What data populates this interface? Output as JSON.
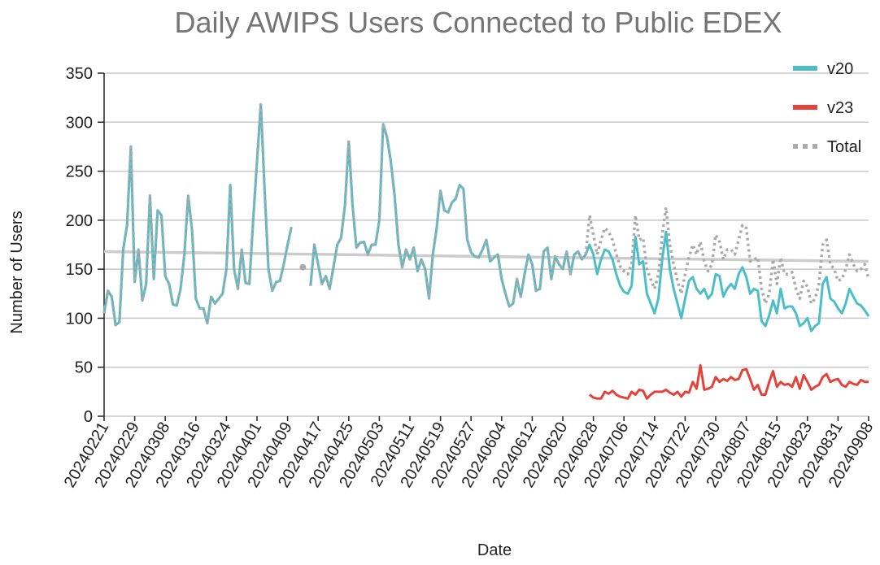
{
  "chart_data": {
    "type": "line",
    "title": "Daily AWIPS Users Connected to Public EDEX",
    "x_label": "Date",
    "y_label": "Number of Users",
    "categories": [
      "20240221",
      null,
      null,
      null,
      null,
      null,
      null,
      null,
      "20240229",
      null,
      null,
      null,
      null,
      null,
      null,
      null,
      "20240308",
      null,
      null,
      null,
      null,
      null,
      null,
      null,
      "20240316",
      null,
      null,
      null,
      null,
      null,
      null,
      null,
      "20240324",
      null,
      null,
      null,
      null,
      null,
      null,
      null,
      "20240401",
      null,
      null,
      null,
      null,
      null,
      null,
      null,
      "20240409",
      null,
      null,
      null,
      null,
      null,
      null,
      null,
      "20240417",
      null,
      null,
      null,
      null,
      null,
      null,
      null,
      "20240425",
      null,
      null,
      null,
      null,
      null,
      null,
      null,
      "20240503",
      null,
      null,
      null,
      null,
      null,
      null,
      null,
      "20240511",
      null,
      null,
      null,
      null,
      null,
      null,
      null,
      "20240519",
      null,
      null,
      null,
      null,
      null,
      null,
      null,
      "20240527",
      null,
      null,
      null,
      null,
      null,
      null,
      null,
      "20240604",
      null,
      null,
      null,
      null,
      null,
      null,
      null,
      "20240612",
      null,
      null,
      null,
      null,
      null,
      null,
      null,
      "20240620",
      null,
      null,
      null,
      null,
      null,
      null,
      null,
      "20240628",
      null,
      null,
      null,
      null,
      null,
      null,
      null,
      "20240706",
      null,
      null,
      null,
      null,
      null,
      null,
      null,
      "20240714",
      null,
      null,
      null,
      null,
      null,
      null,
      null,
      "20240722",
      null,
      null,
      null,
      null,
      null,
      null,
      null,
      "20240730",
      null,
      null,
      null,
      null,
      null,
      null,
      null,
      "20240807",
      null,
      null,
      null,
      null,
      null,
      null,
      null,
      "20240815",
      null,
      null,
      null,
      null,
      null,
      null,
      null,
      "20240823",
      null,
      null,
      null,
      null,
      null,
      null,
      null,
      "20240831",
      null,
      null,
      null,
      null,
      null,
      null,
      null,
      "20240908"
    ],
    "series": [
      {
        "name": "v20",
        "color": "#4bbec8",
        "style": "solid",
        "values": [
          105,
          128,
          122,
          93,
          96,
          170,
          195,
          275,
          137,
          170,
          118,
          135,
          225,
          140,
          210,
          205,
          143,
          135,
          114,
          113,
          130,
          165,
          225,
          190,
          120,
          110,
          110,
          95,
          122,
          115,
          120,
          125,
          150,
          236,
          150,
          130,
          170,
          136,
          135,
          200,
          260,
          318,
          230,
          150,
          128,
          137,
          138,
          155,
          175,
          193,
          null,
          null,
          null,
          null,
          133,
          175,
          155,
          135,
          143,
          130,
          152,
          175,
          182,
          215,
          280,
          215,
          172,
          177,
          178,
          165,
          175,
          175,
          200,
          298,
          285,
          260,
          225,
          175,
          152,
          170,
          160,
          172,
          148,
          160,
          150,
          120,
          165,
          192,
          230,
          210,
          208,
          218,
          222,
          236,
          232,
          180,
          167,
          163,
          162,
          170,
          180,
          158,
          162,
          165,
          140,
          125,
          112,
          115,
          140,
          122,
          145,
          165,
          155,
          128,
          130,
          168,
          172,
          140,
          163,
          155,
          150,
          168,
          145,
          165,
          168,
          160,
          165,
          175,
          165,
          145,
          160,
          170,
          168,
          160,
          145,
          133,
          127,
          125,
          133,
          183,
          155,
          158,
          125,
          115,
          105,
          120,
          160,
          188,
          150,
          130,
          115,
          100,
          120,
          138,
          142,
          130,
          125,
          130,
          120,
          125,
          145,
          143,
          122,
          130,
          135,
          130,
          145,
          152,
          142,
          125,
          130,
          128,
          97,
          92,
          103,
          118,
          105,
          130,
          110,
          112,
          112,
          105,
          92,
          95,
          100,
          87,
          92,
          95,
          135,
          142,
          120,
          117,
          110,
          105,
          115,
          130,
          122,
          115,
          113,
          108,
          102
        ]
      },
      {
        "name": "v23",
        "color": "#e5433a",
        "style": "solid",
        "values": [
          null,
          null,
          null,
          null,
          null,
          null,
          null,
          null,
          null,
          null,
          null,
          null,
          null,
          null,
          null,
          null,
          null,
          null,
          null,
          null,
          null,
          null,
          null,
          null,
          null,
          null,
          null,
          null,
          null,
          null,
          null,
          null,
          null,
          null,
          null,
          null,
          null,
          null,
          null,
          null,
          null,
          null,
          null,
          null,
          null,
          null,
          null,
          null,
          null,
          null,
          null,
          null,
          null,
          null,
          null,
          null,
          null,
          null,
          null,
          null,
          null,
          null,
          null,
          null,
          null,
          null,
          null,
          null,
          null,
          null,
          null,
          null,
          null,
          null,
          null,
          null,
          null,
          null,
          null,
          null,
          null,
          null,
          null,
          null,
          null,
          null,
          null,
          null,
          null,
          null,
          null,
          null,
          null,
          null,
          null,
          null,
          null,
          null,
          null,
          null,
          null,
          null,
          null,
          null,
          null,
          null,
          null,
          null,
          null,
          null,
          null,
          null,
          null,
          null,
          null,
          null,
          null,
          null,
          null,
          null,
          null,
          null,
          null,
          null,
          null,
          null,
          null,
          22,
          19,
          18,
          18,
          25,
          23,
          26,
          22,
          20,
          19,
          18,
          25,
          22,
          27,
          26,
          18,
          22,
          25,
          25,
          25,
          27,
          24,
          22,
          25,
          20,
          25,
          24,
          35,
          28,
          52,
          27,
          28,
          30,
          40,
          35,
          38,
          36,
          40,
          37,
          38,
          47,
          48,
          38,
          27,
          32,
          22,
          22,
          35,
          46,
          30,
          35,
          32,
          33,
          30,
          40,
          28,
          42,
          35,
          27,
          30,
          32,
          40,
          43,
          35,
          37,
          38,
          32,
          30,
          35,
          33,
          32,
          37,
          35,
          35
        ]
      },
      {
        "name": "Total",
        "color": "#aaaaaa",
        "style": "dotted",
        "values": [
          105,
          128,
          122,
          93,
          96,
          170,
          195,
          275,
          137,
          170,
          118,
          135,
          225,
          140,
          210,
          205,
          143,
          135,
          114,
          113,
          130,
          165,
          225,
          190,
          120,
          110,
          110,
          95,
          122,
          115,
          120,
          125,
          150,
          236,
          150,
          130,
          170,
          136,
          135,
          200,
          260,
          318,
          230,
          150,
          128,
          137,
          138,
          155,
          175,
          193,
          null,
          null,
          152,
          null,
          133,
          175,
          155,
          135,
          143,
          130,
          152,
          175,
          182,
          215,
          280,
          215,
          172,
          177,
          178,
          165,
          175,
          175,
          200,
          298,
          285,
          260,
          225,
          175,
          152,
          170,
          160,
          172,
          148,
          160,
          150,
          120,
          165,
          192,
          230,
          210,
          208,
          218,
          222,
          236,
          232,
          180,
          167,
          163,
          162,
          170,
          180,
          158,
          162,
          165,
          140,
          125,
          112,
          115,
          140,
          122,
          145,
          165,
          155,
          128,
          130,
          168,
          172,
          140,
          163,
          155,
          150,
          168,
          145,
          165,
          168,
          160,
          165,
          205,
          185,
          165,
          180,
          192,
          188,
          180,
          165,
          153,
          148,
          145,
          155,
          205,
          180,
          182,
          150,
          140,
          130,
          145,
          185,
          213,
          175,
          155,
          138,
          125,
          145,
          162,
          175,
          165,
          178,
          158,
          148,
          155,
          185,
          178,
          160,
          170,
          170,
          165,
          180,
          195,
          192,
          158,
          160,
          162,
          130,
          115,
          125,
          160,
          135,
          162,
          145,
          145,
          147,
          130,
          120,
          138,
          132,
          115,
          120,
          135,
          175,
          180,
          155,
          150,
          138,
          140,
          150,
          165,
          155,
          148,
          150,
          155,
          140
        ]
      }
    ],
    "trendline": {
      "color": "#cccccc",
      "values": [
        168,
        158
      ]
    },
    "ylim": [
      0,
      350
    ],
    "yticks": [
      0,
      50,
      100,
      150,
      200,
      250,
      300,
      350
    ],
    "grid": true,
    "legend": "top-right"
  }
}
